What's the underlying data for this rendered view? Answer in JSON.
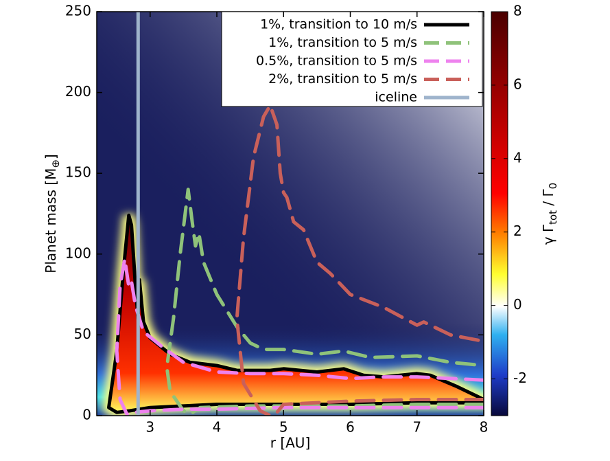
{
  "chart_data": {
    "type": "line",
    "xlabel": "r [AU]",
    "ylabel_parts": [
      "Planet mass [M",
      "⊕",
      "]"
    ],
    "colorbar_label_parts": [
      "γ Γ",
      "tot",
      " / Γ",
      "0"
    ],
    "xlim": [
      2.2,
      8
    ],
    "xticks": [
      3,
      4,
      5,
      6,
      7,
      8
    ],
    "ylim": [
      0,
      250
    ],
    "yticks": [
      0,
      50,
      100,
      150,
      200,
      250
    ],
    "clim": [
      -3,
      8
    ],
    "cticks": [
      -2,
      0,
      2,
      4,
      6,
      8
    ],
    "legend": "upper right",
    "series": [
      {
        "name": "1%, transition to 10 m/s",
        "color": "#000000",
        "dashed": false,
        "x": [
          2.38,
          2.5,
          2.6,
          2.68,
          2.72,
          2.78,
          2.82,
          2.84,
          2.9,
          3.0,
          3.3,
          3.6,
          4.0,
          4.3,
          4.8,
          5.0,
          5.5,
          5.9,
          6.2,
          6.5,
          7.0,
          7.2,
          7.6,
          7.9,
          8.0,
          8.0,
          7.5,
          7.0,
          6.0,
          5.0,
          4.0,
          3.5,
          3.0,
          2.7,
          2.5,
          2.38
        ],
        "values": [
          5,
          40,
          90,
          124,
          118,
          80,
          60,
          84,
          58,
          48,
          38,
          33,
          31,
          28,
          28,
          29,
          27,
          29,
          25,
          24,
          26,
          25,
          18,
          12,
          10,
          8,
          8,
          8,
          7,
          7,
          7,
          6,
          5,
          3,
          2,
          5
        ]
      },
      {
        "name": "1%, transition to 5 m/s",
        "color": "#8fc27a",
        "dashed": true,
        "x": [
          8.0,
          7.0,
          6.0,
          5.0,
          4.5,
          3.75,
          3.6,
          3.5,
          3.3,
          3.25,
          3.35,
          3.45,
          3.57,
          3.63,
          3.68,
          3.73,
          3.8,
          4.0,
          4.3,
          4.5,
          4.7,
          5.0,
          5.5,
          5.9,
          6.3,
          7.0,
          7.5,
          8.0
        ],
        "values": [
          7,
          7,
          6,
          6,
          6,
          5,
          1,
          3,
          15,
          30,
          60,
          100,
          140,
          120,
          105,
          113,
          95,
          75,
          55,
          45,
          41,
          41,
          38,
          40,
          36,
          37,
          33,
          31
        ]
      },
      {
        "name": "0.5%, transition to 5 m/s",
        "color": "#ee82ee",
        "dashed": true,
        "x": [
          8.0,
          7.0,
          6.0,
          5.0,
          4.0,
          3.5,
          3.0,
          2.75,
          2.65,
          2.55,
          2.5,
          2.55,
          2.62,
          2.68,
          2.72,
          2.78,
          2.9,
          3.2,
          3.5,
          4.0,
          4.5,
          5.0,
          5.5,
          6.0,
          6.5,
          7.0,
          7.5,
          8.0
        ],
        "values": [
          5,
          5,
          5,
          5,
          4,
          4,
          3,
          2,
          1,
          10,
          40,
          80,
          97,
          80,
          83,
          68,
          52,
          42,
          33,
          27,
          26,
          26,
          25,
          23,
          24,
          24,
          23,
          22
        ]
      },
      {
        "name": "2%, transition to 5 m/s",
        "color": "#c9605a",
        "dashed": true,
        "x": [
          8.0,
          7.0,
          6.0,
          5.0,
          4.9,
          4.8,
          4.65,
          4.4,
          4.3,
          4.4,
          4.55,
          4.7,
          4.8,
          4.9,
          4.95,
          5.0,
          5.05,
          5.15,
          5.3,
          5.5,
          5.7,
          6.0,
          6.5,
          7.0,
          7.1,
          7.5,
          8.0
        ],
        "values": [
          10,
          10,
          9,
          7,
          2,
          0,
          3,
          20,
          60,
          110,
          160,
          185,
          192,
          180,
          150,
          138,
          135,
          120,
          115,
          95,
          88,
          75,
          67,
          56,
          58,
          50,
          46
        ]
      },
      {
        "name": "iceline",
        "color": "#9fb4cc",
        "dashed": false,
        "x": [
          2.82,
          2.82
        ],
        "values": [
          0,
          250
        ]
      }
    ]
  }
}
